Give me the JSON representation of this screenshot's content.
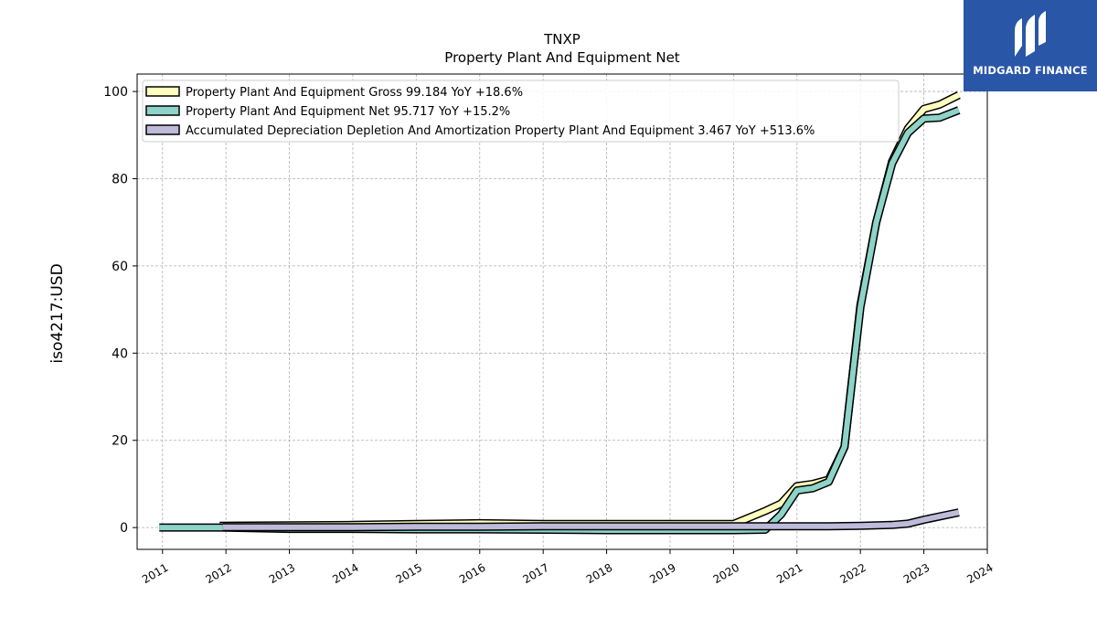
{
  "brand": {
    "name": "MIDGARD FINANCE",
    "bg": "#2a56a8"
  },
  "chart_data": {
    "type": "line",
    "title": "TNXP",
    "subtitle": "Property Plant And Equipment Net",
    "ylabel": "iso4217:USD",
    "xlabel": "",
    "xlim": [
      2010.6,
      2024.0
    ],
    "ylim": [
      -5,
      104
    ],
    "xticks": [
      "2011",
      "2012",
      "2013",
      "2014",
      "2015",
      "2016",
      "2017",
      "2018",
      "2019",
      "2020",
      "2021",
      "2022",
      "2023",
      "2024"
    ],
    "yticks": [
      0,
      20,
      40,
      60,
      80,
      100
    ],
    "grid": true,
    "legend_position": "top-left",
    "series": [
      {
        "name": "Property Plant And Equipment Gross  99.184 YoY +18.6%",
        "color": "#ffffbf",
        "x": [
          2011.9,
          2013.0,
          2014.0,
          2015.0,
          2016.0,
          2017.0,
          2018.0,
          2019.0,
          2020.0,
          2020.5,
          2020.75,
          2021.0,
          2021.25,
          2021.5,
          2021.75,
          2022.0,
          2022.25,
          2022.5,
          2022.75,
          2023.0,
          2023.25,
          2023.55
        ],
        "y": [
          0.4,
          0.5,
          0.6,
          0.8,
          1.0,
          0.8,
          0.8,
          0.8,
          0.8,
          3.8,
          5.5,
          9.5,
          10.0,
          11.0,
          18.5,
          51.0,
          70.0,
          84.0,
          91.5,
          96.0,
          97.0,
          99.184
        ]
      },
      {
        "name": "Property Plant And Equipment Net  95.717 YoY +15.2%",
        "color": "#8dd3c7",
        "x": [
          2010.95,
          2011.9,
          2013.0,
          2014.0,
          2015.0,
          2016.0,
          2017.0,
          2018.0,
          2019.0,
          2020.0,
          2020.5,
          2020.75,
          2021.0,
          2021.25,
          2021.5,
          2021.75,
          2022.0,
          2022.25,
          2022.5,
          2022.75,
          2023.0,
          2023.25,
          2023.55
        ],
        "y": [
          0.0,
          0.0,
          -0.3,
          -0.3,
          -0.4,
          -0.4,
          -0.5,
          -0.6,
          -0.6,
          -0.6,
          -0.5,
          3.0,
          8.5,
          9.0,
          10.5,
          18.5,
          50.5,
          70.0,
          83.5,
          90.5,
          93.8,
          94.0,
          95.717
        ]
      },
      {
        "name": "Accumulated Depreciation Depletion And Amortization Property Plant And Equipment  3.467 YoY +513.6%",
        "color": "#bebada",
        "x": [
          2011.95,
          2013.0,
          2014.0,
          2015.0,
          2016.0,
          2017.0,
          2018.0,
          2019.0,
          2020.0,
          2021.0,
          2021.5,
          2022.0,
          2022.5,
          2022.75,
          2023.0,
          2023.55
        ],
        "y": [
          0.1,
          0.1,
          0.1,
          0.2,
          0.2,
          0.3,
          0.3,
          0.3,
          0.3,
          0.3,
          0.3,
          0.4,
          0.6,
          0.9,
          1.8,
          3.467
        ]
      }
    ]
  }
}
